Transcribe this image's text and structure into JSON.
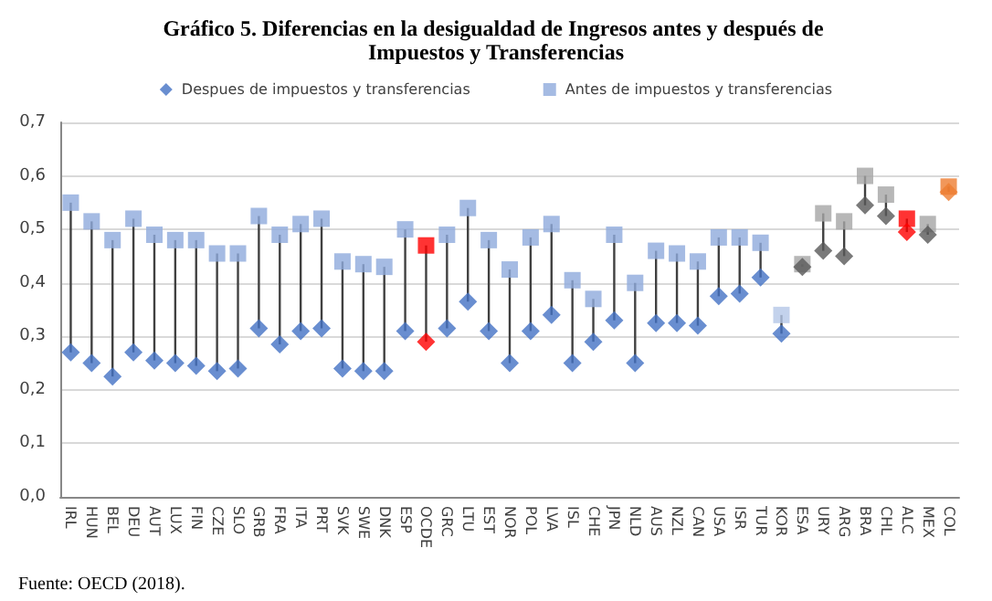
{
  "chart_data": {
    "type": "scatter",
    "title": "Gráfico 5. Diferencias en la desigualdad de Ingresos antes y después de Impuestos y Transferencias",
    "categories": [
      "IRL",
      "HUN",
      "BEL",
      "DEU",
      "AUT",
      "LUX",
      "FIN",
      "CZE",
      "SLO",
      "GRB",
      "FRA",
      "ITA",
      "PRT",
      "SVK",
      "SWE",
      "DNK",
      "ESP",
      "OCDE",
      "GRC",
      "LTU",
      "EST",
      "NOR",
      "POL",
      "LVA",
      "ISL",
      "CHE",
      "JPN",
      "NLD",
      "AUS",
      "NZL",
      "CAN",
      "USA",
      "ISR",
      "TUR",
      "KOR",
      "ESA",
      "URY",
      "ARG",
      "BRA",
      "CHL",
      "ALC",
      "MEX",
      "COL"
    ],
    "series": [
      {
        "name": "Despues de impuestos y transferencias",
        "marker": "diamond",
        "color": "#4472c4",
        "values": [
          0.27,
          0.25,
          0.225,
          0.27,
          0.255,
          0.25,
          0.245,
          0.235,
          0.24,
          0.315,
          0.285,
          0.31,
          0.315,
          0.24,
          0.235,
          0.235,
          0.31,
          0.29,
          0.315,
          0.365,
          0.31,
          0.25,
          0.31,
          0.34,
          0.25,
          0.29,
          0.33,
          0.25,
          0.325,
          0.325,
          0.32,
          0.375,
          0.38,
          0.41,
          0.305,
          0.43,
          0.46,
          0.45,
          0.545,
          0.525,
          0.495,
          0.49,
          0.57
        ],
        "colors": [
          "#4472c4",
          "#4472c4",
          "#4472c4",
          "#4472c4",
          "#4472c4",
          "#4472c4",
          "#4472c4",
          "#4472c4",
          "#4472c4",
          "#4472c4",
          "#4472c4",
          "#4472c4",
          "#4472c4",
          "#4472c4",
          "#4472c4",
          "#4472c4",
          "#4472c4",
          "#ff0000",
          "#4472c4",
          "#4472c4",
          "#4472c4",
          "#4472c4",
          "#4472c4",
          "#4472c4",
          "#4472c4",
          "#4472c4",
          "#4472c4",
          "#4472c4",
          "#4472c4",
          "#4472c4",
          "#4472c4",
          "#4472c4",
          "#4472c4",
          "#4472c4",
          "#4472c4",
          "#595959",
          "#595959",
          "#595959",
          "#595959",
          "#595959",
          "#ff0000",
          "#595959",
          "#ed7d31"
        ]
      },
      {
        "name": "Antes de impuestos y transferencias",
        "marker": "square",
        "color": "#8faadc",
        "values": [
          0.55,
          0.515,
          0.48,
          0.52,
          0.49,
          0.48,
          0.48,
          0.455,
          0.455,
          0.525,
          0.49,
          0.51,
          0.52,
          0.44,
          0.435,
          0.43,
          0.5,
          0.47,
          0.49,
          0.54,
          0.48,
          0.425,
          0.485,
          0.51,
          0.405,
          0.37,
          0.49,
          0.4,
          0.46,
          0.455,
          0.44,
          0.485,
          0.485,
          0.475,
          0.34,
          0.435,
          0.53,
          0.515,
          0.6,
          0.565,
          0.52,
          0.51,
          0.58
        ],
        "colors": [
          "#8faadc",
          "#8faadc",
          "#8faadc",
          "#8faadc",
          "#8faadc",
          "#8faadc",
          "#8faadc",
          "#8faadc",
          "#8faadc",
          "#8faadc",
          "#8faadc",
          "#8faadc",
          "#8faadc",
          "#8faadc",
          "#8faadc",
          "#8faadc",
          "#8faadc",
          "#ff0000",
          "#8faadc",
          "#8faadc",
          "#8faadc",
          "#8faadc",
          "#8faadc",
          "#8faadc",
          "#8faadc",
          "#8faadc",
          "#8faadc",
          "#8faadc",
          "#8faadc",
          "#8faadc",
          "#8faadc",
          "#8faadc",
          "#8faadc",
          "#8faadc",
          "#b4c7e7",
          "#a5a5a5",
          "#a5a5a5",
          "#a5a5a5",
          "#a5a5a5",
          "#a5a5a5",
          "#ff0000",
          "#a5a5a5",
          "#ed7d31"
        ]
      }
    ],
    "ylim": [
      0,
      0.7
    ],
    "yticks": [
      {
        "value": 0,
        "label": "0,0"
      },
      {
        "value": 0.1,
        "label": "0,1"
      },
      {
        "value": 0.2,
        "label": "0,2"
      },
      {
        "value": 0.3,
        "label": "0,3"
      },
      {
        "value": 0.4,
        "label": "0,4"
      },
      {
        "value": 0.5,
        "label": "0,5"
      },
      {
        "value": 0.6,
        "label": "0,6"
      },
      {
        "value": 0.7,
        "label": "0,7"
      }
    ],
    "grid": "y",
    "legend": "top",
    "line_style": "solid",
    "annotations": [
      "Fuente: OECD (2018)."
    ]
  }
}
